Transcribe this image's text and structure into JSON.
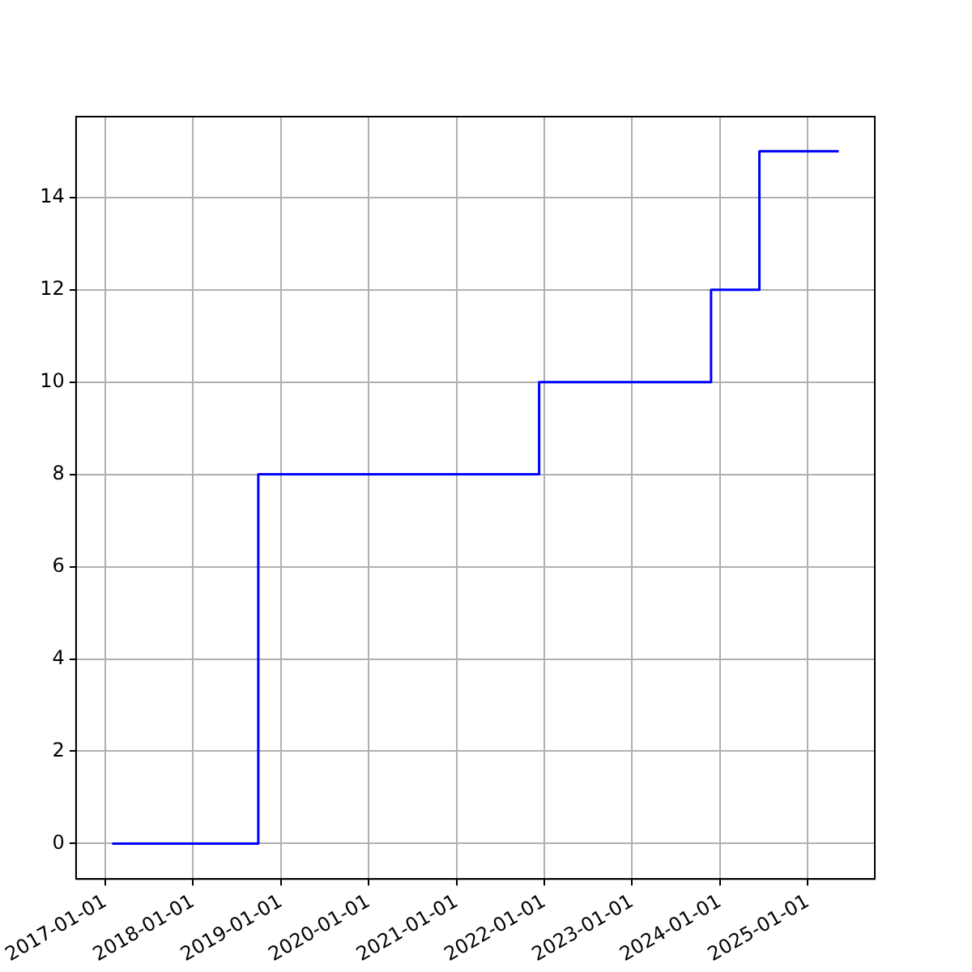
{
  "chart_data": {
    "type": "step",
    "x": [
      "2017-01-29",
      "2018-09-29",
      "2021-12-10",
      "2023-11-25",
      "2024-06-13",
      "2025-05-09"
    ],
    "series": [
      {
        "color": "#0000ff",
        "values": [
          0,
          8,
          10,
          12,
          15,
          15
        ]
      }
    ],
    "xlim": [
      "2016-09-01",
      "2025-10-06"
    ],
    "xticks": [
      "2017-01-01",
      "2018-01-01",
      "2019-01-01",
      "2020-01-01",
      "2021-01-01",
      "2022-01-01",
      "2023-01-01",
      "2024-01-01",
      "2025-01-01"
    ],
    "ylim": [
      -0.77,
      15.75
    ],
    "yticks": [
      0,
      2,
      4,
      6,
      8,
      10,
      12,
      14
    ],
    "grid": true
  }
}
